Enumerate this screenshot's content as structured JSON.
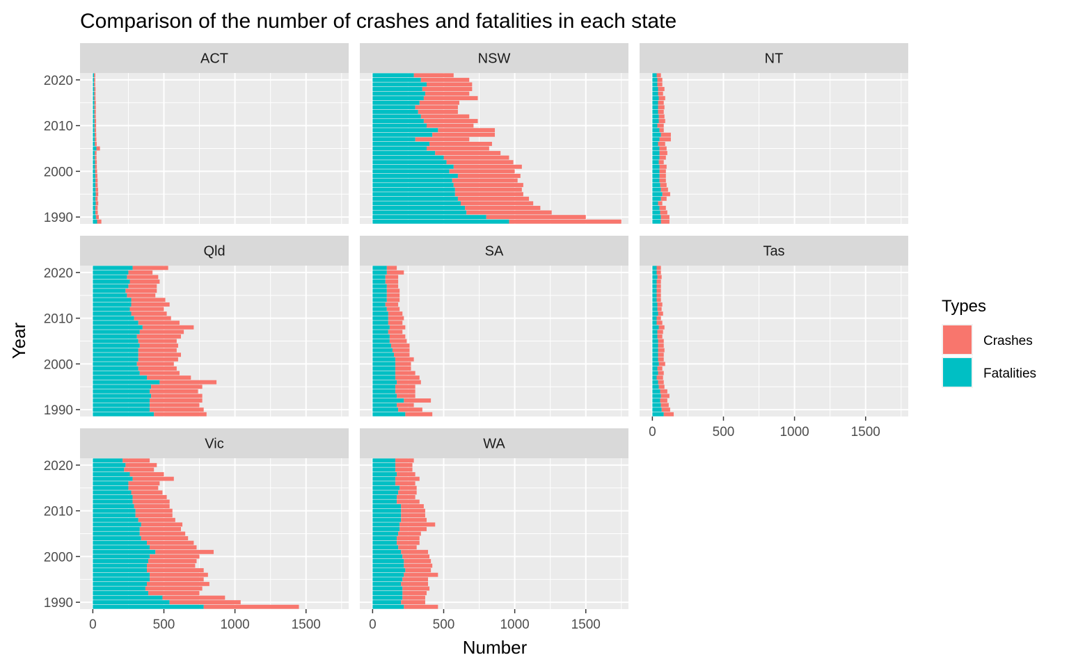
{
  "chart_data": {
    "type": "bar",
    "orientation": "horizontal",
    "stacked": true,
    "title": "Comparison of the number of crashes and fatalities in each state",
    "xlabel": "Number",
    "ylabel": "Year",
    "xlim": [
      -90,
      1800
    ],
    "ylim": [
      1988.5,
      2021.5
    ],
    "x_ticks": [
      0,
      500,
      1000,
      1500
    ],
    "y_ticks": [
      1990,
      2000,
      2010,
      2020
    ],
    "years": [
      1989,
      1990,
      1991,
      1992,
      1993,
      1994,
      1995,
      1996,
      1997,
      1998,
      1999,
      2000,
      2001,
      2002,
      2003,
      2004,
      2005,
      2006,
      2007,
      2008,
      2009,
      2010,
      2011,
      2012,
      2013,
      2014,
      2015,
      2016,
      2017,
      2018,
      2019,
      2020,
      2021
    ],
    "legend": {
      "title": "Types",
      "placement": "right",
      "entries": [
        "Crashes",
        "Fatalities"
      ]
    },
    "colors": {
      "Crashes": "#F8766D",
      "Fatalities": "#00BFC4",
      "panel_bg": "#EBEBEB",
      "strip_bg": "#D9D9D9",
      "grid": "#FFFFFF",
      "axis_text": "#4D4D4D"
    },
    "panels": [
      {
        "name": "ACT",
        "fatalities": [
          30,
          22,
          18,
          18,
          20,
          18,
          20,
          19,
          18,
          18,
          17,
          16,
          15,
          15,
          14,
          14,
          25,
          14,
          13,
          13,
          12,
          12,
          12,
          11,
          11,
          11,
          11,
          10,
          10,
          10,
          9,
          9,
          9
        ],
        "crashes": [
          30,
          20,
          17,
          16,
          18,
          16,
          18,
          18,
          16,
          16,
          15,
          14,
          13,
          13,
          12,
          12,
          25,
          13,
          12,
          11,
          11,
          11,
          11,
          10,
          10,
          10,
          10,
          9,
          9,
          9,
          8,
          8,
          8
        ]
      },
      {
        "name": "NSW",
        "fatalities": [
          960,
          800,
          660,
          650,
          620,
          600,
          580,
          580,
          570,
          560,
          600,
          540,
          570,
          520,
          500,
          440,
          380,
          400,
          300,
          420,
          460,
          380,
          360,
          340,
          320,
          300,
          330,
          360,
          370,
          350,
          380,
          340,
          290
        ],
        "crashes": [
          790,
          700,
          600,
          530,
          510,
          500,
          480,
          470,
          490,
          460,
          440,
          460,
          480,
          470,
          460,
          460,
          440,
          440,
          380,
          440,
          400,
          330,
          380,
          340,
          280,
          300,
          280,
          380,
          310,
          350,
          320,
          340,
          280
        ]
      },
      {
        "name": "NT",
        "fatalities": [
          60,
          60,
          55,
          50,
          40,
          60,
          70,
          60,
          55,
          50,
          50,
          50,
          50,
          45,
          50,
          50,
          50,
          40,
          50,
          60,
          50,
          35,
          45,
          45,
          40,
          40,
          40,
          45,
          40,
          40,
          35,
          35,
          30
        ],
        "crashes": [
          60,
          60,
          50,
          45,
          30,
          40,
          55,
          50,
          45,
          45,
          45,
          45,
          50,
          35,
          45,
          55,
          50,
          50,
          80,
          70,
          30,
          45,
          45,
          40,
          40,
          45,
          40,
          45,
          35,
          45,
          35,
          35,
          30
        ]
      },
      {
        "name": "Qld",
        "fatalities": [
          430,
          400,
          400,
          400,
          410,
          400,
          410,
          470,
          380,
          330,
          320,
          310,
          320,
          320,
          320,
          330,
          320,
          310,
          330,
          350,
          320,
          290,
          270,
          260,
          270,
          270,
          240,
          230,
          250,
          260,
          240,
          250,
          280
        ],
        "crashes": [
          370,
          380,
          350,
          370,
          360,
          340,
          360,
          400,
          310,
          280,
          270,
          260,
          280,
          300,
          270,
          270,
          270,
          310,
          310,
          360,
          290,
          260,
          250,
          240,
          270,
          240,
          200,
          220,
          200,
          210,
          220,
          170,
          250
        ]
      },
      {
        "name": "SA",
        "fatalities": [
          230,
          180,
          170,
          220,
          170,
          160,
          160,
          170,
          160,
          160,
          160,
          160,
          160,
          150,
          140,
          130,
          120,
          120,
          110,
          120,
          110,
          110,
          110,
          100,
          90,
          100,
          100,
          100,
          100,
          90,
          90,
          100,
          100
        ],
        "crashes": [
          190,
          170,
          120,
          190,
          130,
          140,
          140,
          170,
          170,
          140,
          110,
          110,
          130,
          110,
          120,
          130,
          120,
          110,
          100,
          110,
          100,
          110,
          100,
          90,
          90,
          90,
          90,
          90,
          80,
          90,
          90,
          120,
          70
        ]
      },
      {
        "name": "Tas",
        "fatalities": [
          80,
          65,
          60,
          55,
          60,
          55,
          45,
          40,
          30,
          40,
          35,
          45,
          40,
          40,
          40,
          40,
          40,
          35,
          35,
          45,
          30,
          30,
          40,
          35,
          35,
          30,
          30,
          30,
          30,
          30,
          35,
          30,
          30
        ],
        "crashes": [
          70,
          60,
          55,
          50,
          60,
          50,
          40,
          40,
          45,
          40,
          35,
          45,
          40,
          40,
          45,
          40,
          40,
          35,
          40,
          40,
          40,
          30,
          35,
          30,
          35,
          30,
          30,
          30,
          30,
          30,
          30,
          30,
          30
        ]
      },
      {
        "name": "Vic",
        "fatalities": [
          780,
          540,
          490,
          390,
          370,
          380,
          400,
          400,
          380,
          380,
          390,
          400,
          440,
          400,
          380,
          340,
          330,
          330,
          340,
          320,
          300,
          300,
          290,
          280,
          280,
          270,
          250,
          250,
          280,
          260,
          220,
          230,
          210
        ],
        "crashes": [
          670,
          500,
          440,
          360,
          400,
          440,
          380,
          410,
          400,
          340,
          340,
          350,
          410,
          330,
          330,
          330,
          320,
          290,
          290,
          260,
          260,
          260,
          250,
          260,
          240,
          220,
          210,
          220,
          290,
          240,
          210,
          220,
          190
        ]
      },
      {
        "name": "WA",
        "fatalities": [
          220,
          200,
          210,
          210,
          210,
          200,
          210,
          220,
          230,
          220,
          220,
          210,
          200,
          180,
          170,
          170,
          180,
          190,
          190,
          200,
          200,
          200,
          200,
          170,
          170,
          180,
          190,
          160,
          160,
          170,
          160,
          160,
          160
        ],
        "crashes": [
          240,
          170,
          160,
          170,
          190,
          190,
          180,
          240,
          180,
          200,
          190,
          190,
          190,
          130,
          160,
          160,
          160,
          190,
          250,
          180,
          170,
          170,
          160,
          160,
          130,
          130,
          120,
          140,
          170,
          130,
          120,
          120,
          130
        ]
      }
    ]
  }
}
